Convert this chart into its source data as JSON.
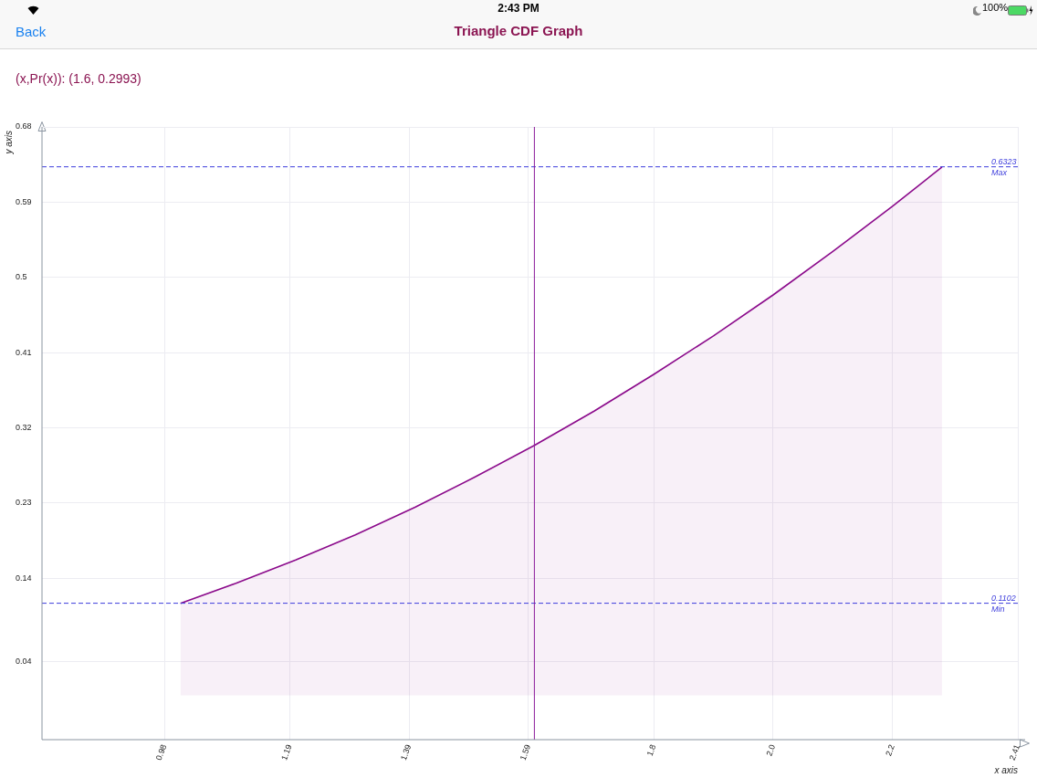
{
  "chart_data": {
    "type": "area",
    "title": "Triangle CDF Graph",
    "subtitle": "(x,Pr(x)): (1.6, 0.2993)",
    "xlabel": "x axis",
    "ylabel": "y axis",
    "annotations": [
      "Back",
      "2:43 PM",
      "100%"
    ],
    "series": [
      {
        "color": "#8b0a8b",
        "x": [
          1.007,
          1.1,
          1.2,
          1.3,
          1.4,
          1.5,
          1.6,
          1.7,
          1.8,
          1.9,
          2.0,
          2.1,
          2.2,
          2.283
        ],
        "values": [
          0.11,
          0.134,
          0.162,
          0.192,
          0.225,
          0.261,
          0.299,
          0.34,
          0.384,
          0.43,
          0.479,
          0.531,
          0.585,
          0.632
        ]
      }
    ],
    "xlim": [
      0.775,
      2.41
    ],
    "ylim": [
      -0.053,
      0.68
    ],
    "xticks": [
      0.98,
      1.19,
      1.39,
      1.59,
      {
        "value": 1.8,
        "label": "1.8"
      },
      {
        "value": 2.0,
        "label": "2.0"
      },
      {
        "value": 2.2,
        "label": "2.2"
      },
      2.41
    ],
    "yticks": [
      0.04,
      0.14,
      0.23,
      0.32,
      0.41,
      0.5,
      0.59,
      0.68
    ],
    "ref_lines": [
      {
        "axis": "y",
        "value": 0.6323,
        "label": "0.6323\nMax",
        "color": "#3d3ddc",
        "line_style": "dashed"
      },
      {
        "axis": "y",
        "value": 0.1102,
        "label": "0.1102\nMin",
        "color": "#3d3ddc",
        "line_style": "dashed"
      },
      {
        "axis": "x",
        "value": 1.6,
        "color": "#8b1a9b",
        "line_style": "solid"
      }
    ],
    "grid": true,
    "legend": false,
    "marker": "none",
    "line_style": "solid"
  }
}
